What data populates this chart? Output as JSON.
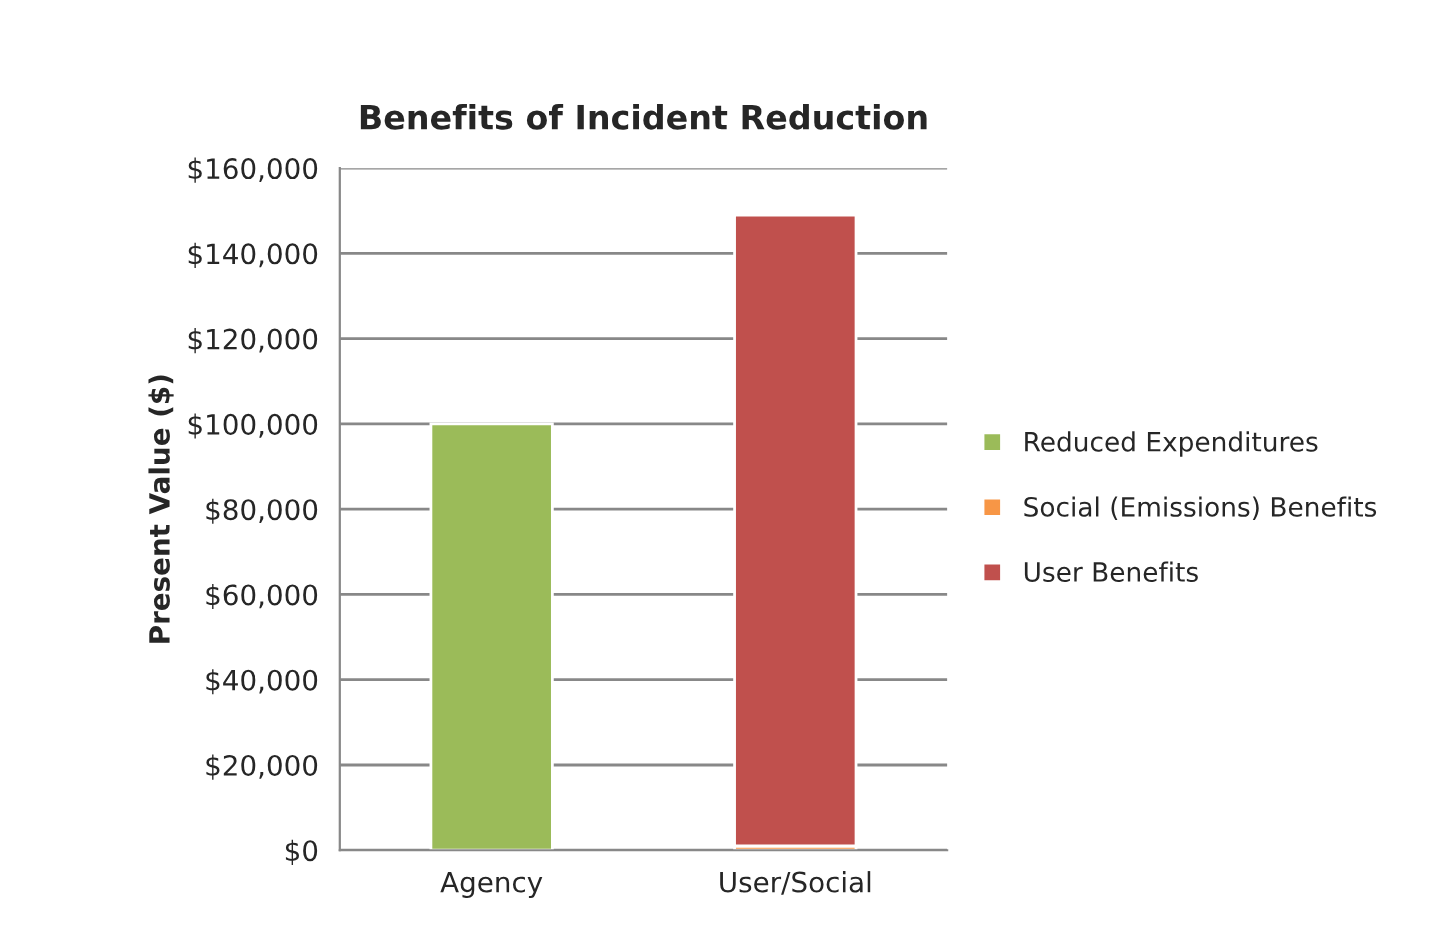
{
  "chart_data": {
    "type": "bar",
    "title": "Benefits of Incident Reduction",
    "ylabel": "Present Value ($)",
    "categories": [
      "Agency",
      "User/Social"
    ],
    "stacked": true,
    "series": [
      {
        "name": "Reduced Expenditures",
        "color": "#9bbb59",
        "values": [
          100000,
          null
        ]
      },
      {
        "name": "Social (Emissions) Benefits",
        "color": "#f79646",
        "values": [
          null,
          1000
        ]
      },
      {
        "name": "User Benefits",
        "color": "#c0504d",
        "values": [
          null,
          148000
        ]
      }
    ],
    "ylim": [
      0,
      160000
    ],
    "yticks": [
      {
        "value": 0,
        "label": "$0"
      },
      {
        "value": 20000,
        "label": "$20,000"
      },
      {
        "value": 40000,
        "label": "$40,000"
      },
      {
        "value": 60000,
        "label": "$60,000"
      },
      {
        "value": 80000,
        "label": "$80,000"
      },
      {
        "value": 100000,
        "label": "$100,000"
      },
      {
        "value": 120000,
        "label": "$120,000"
      },
      {
        "value": 140000,
        "label": "$140,000"
      },
      {
        "value": 160000,
        "label": "$160,000"
      }
    ],
    "grid": "y",
    "legend": "right"
  }
}
